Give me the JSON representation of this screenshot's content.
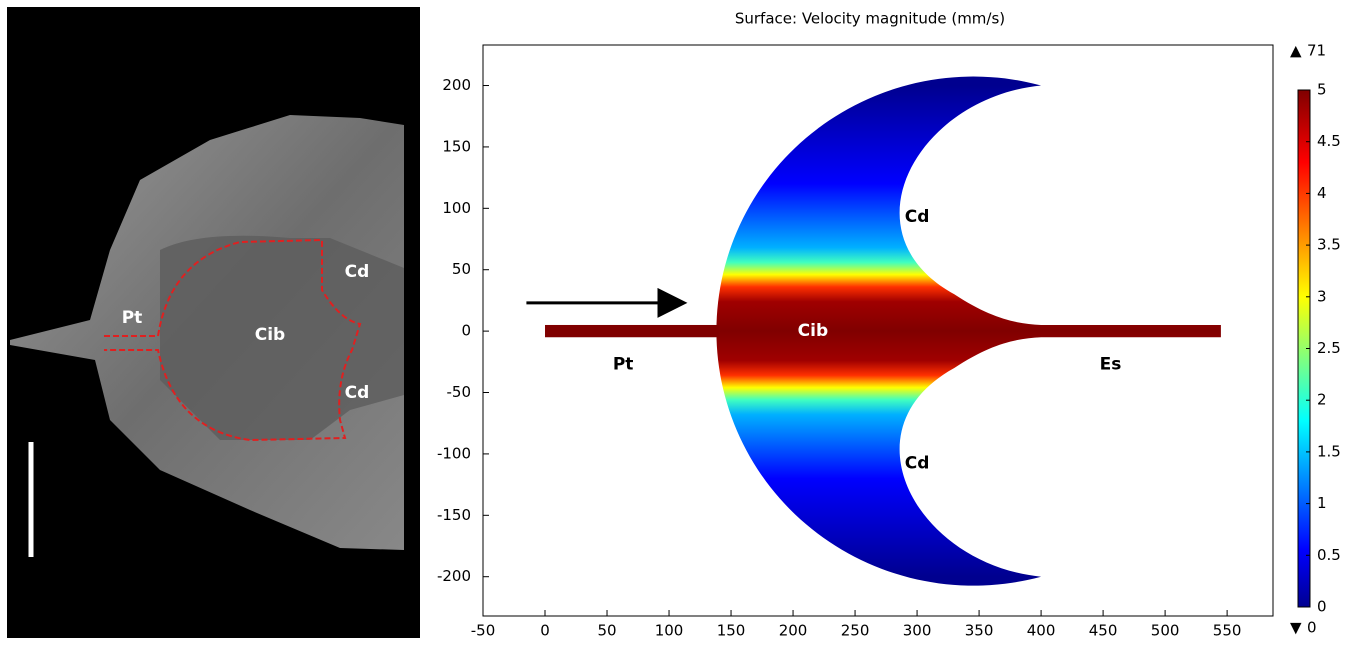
{
  "image_panel": {
    "labels": [
      "Pt",
      "Cib",
      "Cd",
      "Cd"
    ]
  },
  "chart_data": {
    "type": "surface",
    "title": "Surface: Velocity magnitude (mm/s)",
    "xlim": [
      -50,
      587
    ],
    "xticks": [
      -50,
      0,
      50,
      100,
      150,
      200,
      250,
      300,
      350,
      400,
      450,
      500,
      550
    ],
    "ylim": [
      -232,
      233
    ],
    "yticks": [
      -200,
      -150,
      -100,
      -50,
      0,
      50,
      100,
      150,
      200
    ],
    "annotations": [
      "Cd",
      "Cd",
      "Cib",
      "Pt",
      "Es"
    ],
    "colorbar": {
      "lim": [
        0,
        5
      ],
      "ticks": [
        0,
        0.5,
        1,
        1.5,
        2,
        2.5,
        3,
        3.5,
        4,
        4.5,
        5
      ],
      "max": 71,
      "min": 0
    }
  }
}
